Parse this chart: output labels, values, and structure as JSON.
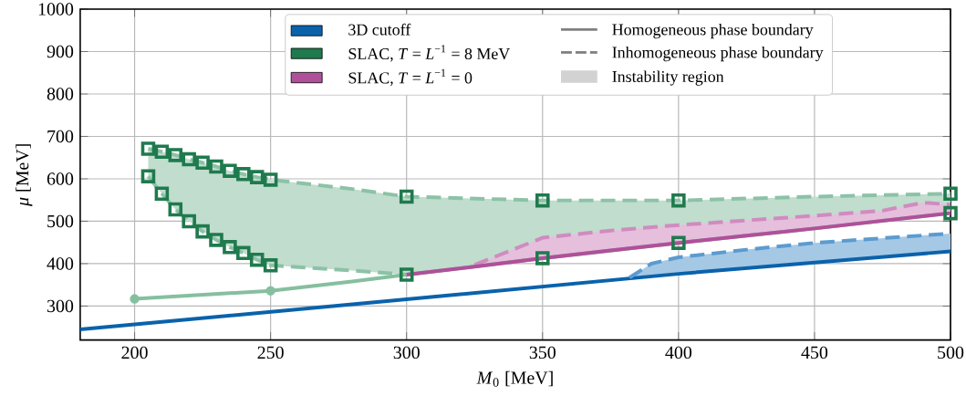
{
  "chart_data": {
    "type": "line",
    "xlabel": "*M*$_{0}$ [MeV]",
    "ylabel": "*μ* [MeV]",
    "xlim": [
      180,
      500
    ],
    "xticks": [
      200,
      250,
      300,
      350,
      400,
      450,
      500
    ],
    "ylim": [
      220,
      1000
    ],
    "yticks": [
      300,
      400,
      500,
      600,
      700,
      800,
      900,
      1000
    ],
    "grid": true,
    "legend": "top",
    "annotations": [
      "Homogeneous phase boundary",
      "Inhomogeneous phase boundary",
      "Instability region"
    ],
    "series": [
      {
        "name": "3D cutoff",
        "color": "#0a62ab",
        "type": "line",
        "line_style": "solid",
        "x": [
          180,
          300,
          400,
          500
        ],
        "values": [
          245,
          316,
          376,
          429
        ]
      },
      {
        "color": "#5b9bd0",
        "type": "line",
        "line_style": "dashed",
        "x": [
          382,
          390,
          400,
          425,
          450,
          500
        ],
        "values": [
          367,
          400,
          415,
          433,
          449,
          471
        ],
        "lower": [
          366,
          371,
          376,
          390,
          403,
          429
        ],
        "upper": [
          367,
          400,
          415,
          433,
          449,
          471
        ]
      },
      {
        "color": "#8cc2a6",
        "type": "line",
        "line_style": "dashed",
        "x": [
          205,
          210,
          215,
          220,
          225,
          230,
          235,
          240,
          245,
          250,
          280,
          300,
          350,
          400,
          450,
          500
        ],
        "values": [
          671,
          664,
          656,
          646,
          638,
          629,
          619,
          611,
          604,
          598,
          576,
          558,
          549,
          549,
          558,
          565
        ],
        "lower": [
          606,
          565,
          528,
          500,
          476,
          456,
          439,
          425,
          409,
          396,
          384,
          374,
          413,
          449,
          483,
          519
        ],
        "upper": [
          671,
          664,
          656,
          646,
          638,
          629,
          619,
          611,
          604,
          598,
          576,
          558,
          549,
          549,
          558,
          565
        ]
      },
      {
        "color": "#8cc2a6",
        "type": "line",
        "line_style": "dashed",
        "x": [
          205,
          210,
          215,
          220,
          225,
          230,
          235,
          240,
          245,
          250,
          280,
          300
        ],
        "values": [
          606,
          565,
          528,
          500,
          476,
          456,
          439,
          425,
          409,
          396,
          384,
          374
        ]
      },
      {
        "color": "#86bf9f",
        "type": "line",
        "line_style": "solid",
        "marker": "circle",
        "x": [
          200,
          250
        ],
        "values": [
          317,
          336
        ]
      },
      {
        "color": "#86bf9f",
        "type": "line",
        "line_style": "solid",
        "x": [
          250,
          280,
          300,
          350,
          400,
          450,
          500
        ],
        "values": [
          336,
          358,
          374,
          413,
          449,
          483,
          519
        ]
      },
      {
        "color": "#d08bc0",
        "type": "line",
        "line_style": "dashed",
        "x": [
          325,
          350,
          375,
          400,
          425,
          450,
          475,
          490,
          500
        ],
        "values": [
          397,
          461,
          478,
          491,
          502,
          513,
          525,
          544,
          539
        ],
        "lower": [
          393,
          413,
          431,
          449,
          466,
          483,
          501,
          512,
          519
        ],
        "upper": [
          397,
          461,
          478,
          491,
          502,
          513,
          525,
          544,
          539
        ]
      },
      {
        "name": "SLAC, *T* = *L*$^{−1}$ = 8 MeV",
        "color": "#1f7a4d",
        "type": "scatter",
        "marker": "square",
        "x": [
          205,
          210,
          215,
          220,
          225,
          230,
          235,
          240,
          245,
          250,
          205,
          210,
          215,
          220,
          225,
          230,
          235,
          240,
          245,
          250,
          300,
          300,
          350,
          350,
          400,
          400,
          500,
          500
        ],
        "values": [
          671,
          664,
          656,
          646,
          638,
          629,
          619,
          611,
          604,
          598,
          606,
          565,
          528,
          500,
          476,
          456,
          439,
          425,
          409,
          396,
          558,
          374,
          549,
          413,
          549,
          449,
          565,
          519
        ]
      },
      {
        "name": "SLAC, *T* = *L*$^{−1}$ = 0",
        "color": "#b0509a",
        "line_style": "solid",
        "x": [
          300,
          325,
          350,
          375,
          400,
          425,
          450,
          475,
          500
        ],
        "values": [
          374,
          393,
          413,
          431,
          449,
          466,
          483,
          501,
          519
        ]
      }
    ]
  }
}
